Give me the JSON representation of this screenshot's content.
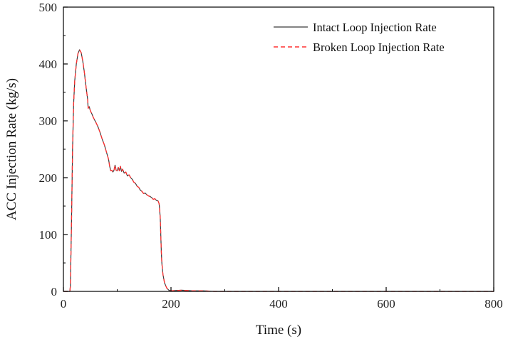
{
  "chart_data": {
    "type": "line",
    "title": "",
    "xlabel": "Time (s)",
    "ylabel": "ACC Injection Rate (kg/s)",
    "xlim": [
      0,
      800
    ],
    "ylim": [
      0,
      500
    ],
    "x_ticks": [
      0,
      200,
      400,
      600,
      800
    ],
    "y_ticks": [
      0,
      100,
      200,
      300,
      400,
      500
    ],
    "grid": false,
    "legend_position": "top-right",
    "series": [
      {
        "name": "Intact Loop Injection Rate",
        "color": "#3a3a3a",
        "style": "solid",
        "points": [
          [
            0,
            0
          ],
          [
            12,
            0
          ],
          [
            13,
            10
          ],
          [
            15,
            120
          ],
          [
            17,
            250
          ],
          [
            19,
            330
          ],
          [
            21,
            370
          ],
          [
            24,
            400
          ],
          [
            27,
            418
          ],
          [
            30,
            425
          ],
          [
            33,
            420
          ],
          [
            36,
            405
          ],
          [
            39,
            385
          ],
          [
            42,
            360
          ],
          [
            45,
            338
          ],
          [
            46,
            322
          ],
          [
            48,
            325
          ],
          [
            50,
            318
          ],
          [
            53,
            312
          ],
          [
            56,
            305
          ],
          [
            60,
            298
          ],
          [
            64,
            290
          ],
          [
            68,
            280
          ],
          [
            72,
            268
          ],
          [
            76,
            258
          ],
          [
            80,
            245
          ],
          [
            84,
            232
          ],
          [
            86,
            220
          ],
          [
            88,
            212
          ],
          [
            90,
            213
          ],
          [
            92,
            210
          ],
          [
            94,
            213
          ],
          [
            96,
            222
          ],
          [
            98,
            213
          ],
          [
            100,
            212
          ],
          [
            102,
            218
          ],
          [
            104,
            212
          ],
          [
            106,
            220
          ],
          [
            108,
            211
          ],
          [
            110,
            215
          ],
          [
            113,
            208
          ],
          [
            116,
            210
          ],
          [
            119,
            203
          ],
          [
            122,
            205
          ],
          [
            125,
            200
          ],
          [
            128,
            197
          ],
          [
            131,
            192
          ],
          [
            134,
            190
          ],
          [
            137,
            185
          ],
          [
            140,
            183
          ],
          [
            143,
            178
          ],
          [
            146,
            176
          ],
          [
            149,
            172
          ],
          [
            152,
            173
          ],
          [
            155,
            170
          ],
          [
            158,
            168
          ],
          [
            161,
            167
          ],
          [
            164,
            165
          ],
          [
            167,
            162
          ],
          [
            170,
            163
          ],
          [
            173,
            160
          ],
          [
            176,
            159
          ],
          [
            178,
            154
          ],
          [
            180,
            130
          ],
          [
            181,
            100
          ],
          [
            182,
            70
          ],
          [
            183,
            50
          ],
          [
            185,
            30
          ],
          [
            188,
            15
          ],
          [
            192,
            6
          ],
          [
            196,
            2
          ],
          [
            200,
            1
          ],
          [
            220,
            2
          ],
          [
            240,
            1
          ],
          [
            260,
            1
          ],
          [
            280,
            0
          ],
          [
            300,
            0
          ],
          [
            400,
            0
          ],
          [
            500,
            0
          ],
          [
            600,
            0
          ],
          [
            700,
            0
          ],
          [
            800,
            0
          ]
        ]
      },
      {
        "name": "Broken Loop Injection Rate",
        "color": "#ff3030",
        "style": "dashed",
        "points": [
          [
            0,
            0
          ],
          [
            12,
            0
          ],
          [
            13,
            10
          ],
          [
            15,
            120
          ],
          [
            17,
            250
          ],
          [
            19,
            330
          ],
          [
            21,
            370
          ],
          [
            24,
            400
          ],
          [
            27,
            418
          ],
          [
            30,
            425
          ],
          [
            33,
            420
          ],
          [
            36,
            405
          ],
          [
            39,
            385
          ],
          [
            42,
            360
          ],
          [
            45,
            338
          ],
          [
            46,
            322
          ],
          [
            48,
            325
          ],
          [
            50,
            318
          ],
          [
            53,
            312
          ],
          [
            56,
            305
          ],
          [
            60,
            298
          ],
          [
            64,
            290
          ],
          [
            68,
            280
          ],
          [
            72,
            268
          ],
          [
            76,
            258
          ],
          [
            80,
            245
          ],
          [
            84,
            232
          ],
          [
            86,
            220
          ],
          [
            88,
            212
          ],
          [
            90,
            213
          ],
          [
            92,
            210
          ],
          [
            94,
            213
          ],
          [
            96,
            222
          ],
          [
            98,
            213
          ],
          [
            100,
            212
          ],
          [
            102,
            218
          ],
          [
            104,
            212
          ],
          [
            106,
            220
          ],
          [
            108,
            211
          ],
          [
            110,
            215
          ],
          [
            113,
            208
          ],
          [
            116,
            210
          ],
          [
            119,
            203
          ],
          [
            122,
            205
          ],
          [
            125,
            200
          ],
          [
            128,
            197
          ],
          [
            131,
            192
          ],
          [
            134,
            190
          ],
          [
            137,
            185
          ],
          [
            140,
            183
          ],
          [
            143,
            178
          ],
          [
            146,
            176
          ],
          [
            149,
            172
          ],
          [
            152,
            173
          ],
          [
            155,
            170
          ],
          [
            158,
            168
          ],
          [
            161,
            167
          ],
          [
            164,
            165
          ],
          [
            167,
            162
          ],
          [
            170,
            163
          ],
          [
            173,
            160
          ],
          [
            176,
            159
          ],
          [
            178,
            154
          ],
          [
            180,
            130
          ],
          [
            181,
            100
          ],
          [
            182,
            70
          ],
          [
            183,
            50
          ],
          [
            185,
            30
          ],
          [
            188,
            15
          ],
          [
            192,
            6
          ],
          [
            196,
            2
          ],
          [
            200,
            1
          ],
          [
            220,
            2
          ],
          [
            240,
            1
          ],
          [
            260,
            1
          ],
          [
            280,
            0
          ],
          [
            300,
            0
          ],
          [
            400,
            0
          ],
          [
            500,
            0
          ],
          [
            600,
            0
          ],
          [
            700,
            0
          ],
          [
            800,
            0
          ]
        ]
      }
    ]
  }
}
